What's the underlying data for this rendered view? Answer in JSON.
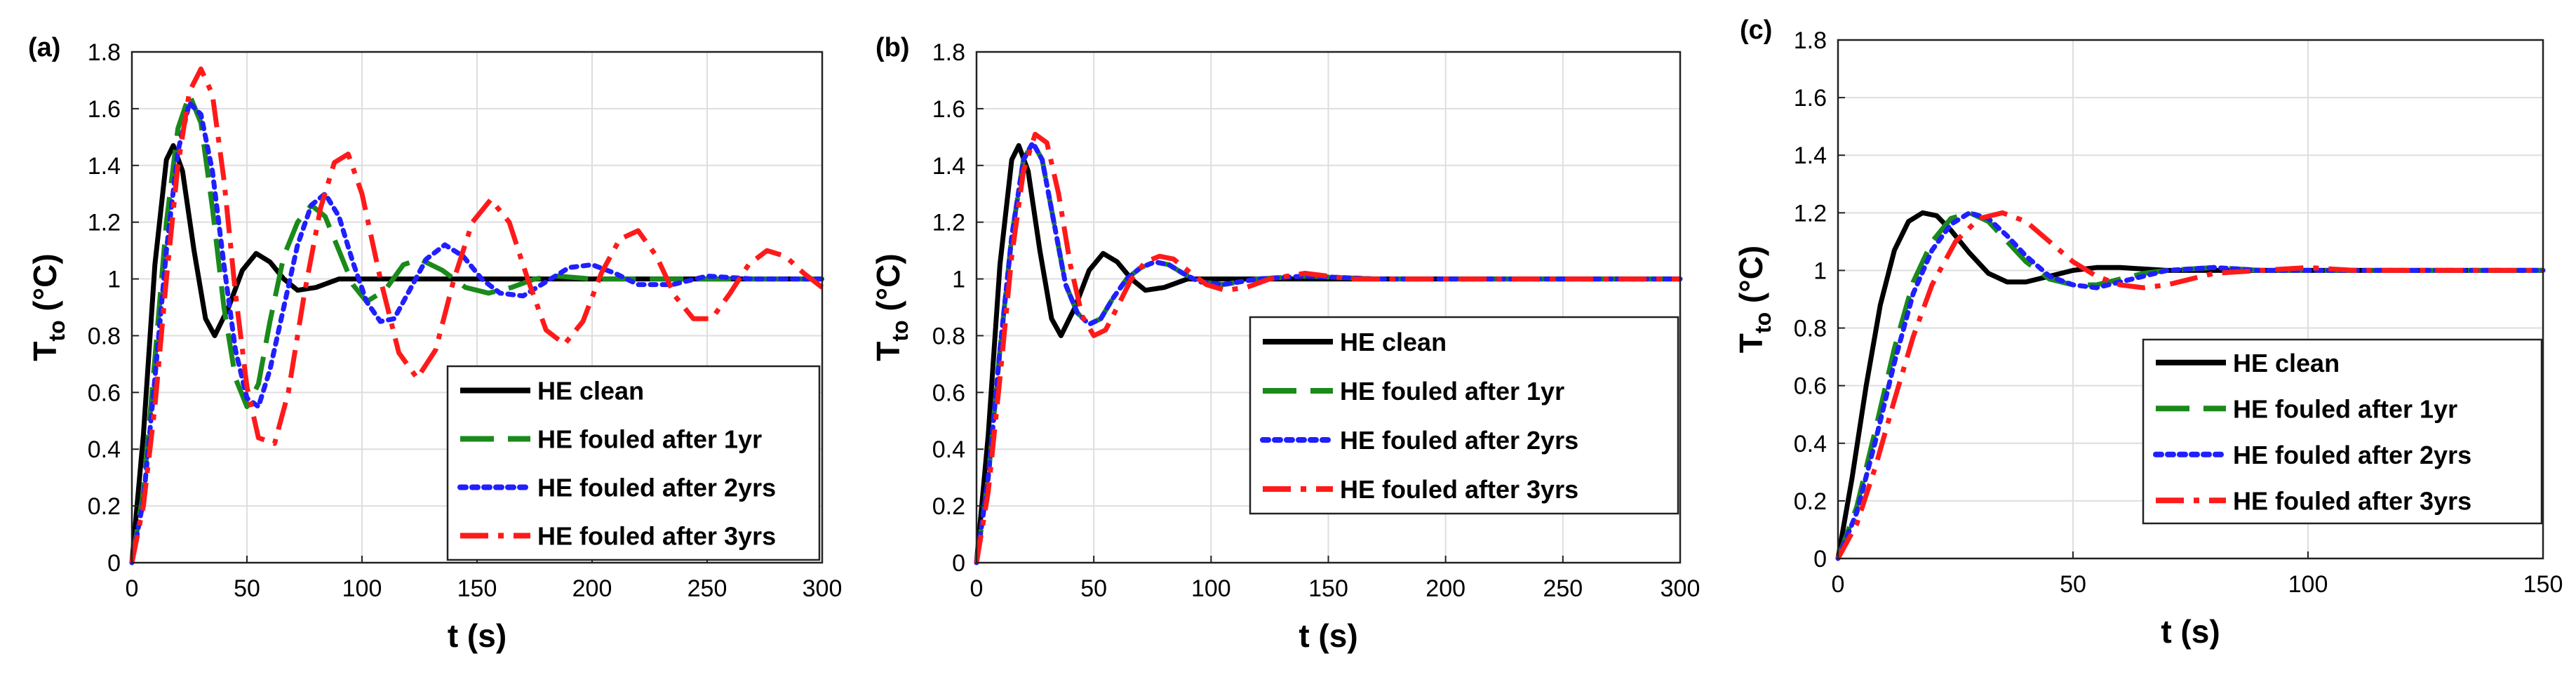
{
  "figure": {
    "panels": [
      {
        "tag": "(a)",
        "xlabel": "t (s)",
        "ylabel_main": "T",
        "ylabel_sub": "to",
        "ylabel_unit": " (°C)"
      },
      {
        "tag": "(b)",
        "xlabel": "t (s)",
        "ylabel_main": "T",
        "ylabel_sub": "to",
        "ylabel_unit": " (°C)"
      },
      {
        "tag": "(c)",
        "xlabel": "t (s)",
        "ylabel_main": "T",
        "ylabel_sub": "to",
        "ylabel_unit": " (°C)"
      }
    ],
    "legend_labels": [
      "HE clean",
      "HE fouled after 1yr",
      "HE fouled after 2yrs",
      "HE fouled after 3yrs"
    ],
    "series_styles": [
      {
        "color": "#000000",
        "dash": ""
      },
      {
        "color": "#1a8a1a",
        "dash": "long-dash"
      },
      {
        "color": "#1f1fff",
        "dash": "dot"
      },
      {
        "color": "#ff1a1a",
        "dash": "dash-dot"
      }
    ]
  },
  "chart_data": [
    {
      "type": "line",
      "tag": "(a)",
      "xlabel": "t (s)",
      "ylabel": "Tto (°C)",
      "xlim": [
        0,
        300
      ],
      "ylim": [
        0,
        1.8
      ],
      "xticks": [
        0,
        50,
        100,
        150,
        200,
        250,
        300
      ],
      "yticks": [
        0,
        0.2,
        0.4,
        0.6,
        0.8,
        1,
        1.2,
        1.4,
        1.6,
        1.8
      ],
      "grid": true,
      "legend_position": "bottom-right",
      "series": [
        {
          "name": "HE clean",
          "x": [
            0,
            5,
            10,
            15,
            18,
            22,
            27,
            32,
            36,
            42,
            48,
            54,
            60,
            66,
            72,
            80,
            90,
            100,
            120,
            150,
            200,
            250,
            300
          ],
          "y": [
            0,
            0.45,
            1.05,
            1.42,
            1.47,
            1.38,
            1.1,
            0.86,
            0.8,
            0.9,
            1.03,
            1.09,
            1.06,
            1.0,
            0.96,
            0.97,
            1.0,
            1.0,
            1.0,
            1.0,
            1.0,
            1.0,
            1.0
          ]
        },
        {
          "name": "HE fouled after 1yr",
          "x": [
            0,
            5,
            10,
            15,
            20,
            25,
            30,
            35,
            40,
            45,
            50,
            55,
            60,
            66,
            72,
            78,
            84,
            90,
            96,
            102,
            110,
            118,
            125,
            135,
            145,
            155,
            165,
            175,
            185,
            200,
            230,
            260,
            300
          ],
          "y": [
            0,
            0.25,
            0.72,
            1.2,
            1.53,
            1.65,
            1.55,
            1.25,
            0.9,
            0.65,
            0.55,
            0.63,
            0.85,
            1.08,
            1.2,
            1.26,
            1.22,
            1.1,
            0.98,
            0.92,
            0.96,
            1.05,
            1.07,
            1.03,
            0.97,
            0.95,
            0.97,
            1.0,
            1.01,
            1.0,
            1.0,
            1.0,
            1.0
          ]
        },
        {
          "name": "HE fouled after 2yrs",
          "x": [
            0,
            5,
            10,
            15,
            20,
            25,
            30,
            35,
            40,
            45,
            50,
            55,
            60,
            66,
            72,
            78,
            84,
            90,
            96,
            102,
            108,
            114,
            120,
            128,
            136,
            144,
            152,
            160,
            170,
            180,
            190,
            200,
            210,
            220,
            235,
            250,
            270,
            300
          ],
          "y": [
            0,
            0.22,
            0.65,
            1.1,
            1.45,
            1.62,
            1.58,
            1.38,
            1.05,
            0.75,
            0.58,
            0.55,
            0.68,
            0.9,
            1.12,
            1.26,
            1.3,
            1.22,
            1.06,
            0.92,
            0.85,
            0.86,
            0.95,
            1.07,
            1.12,
            1.08,
            1.0,
            0.95,
            0.94,
            0.99,
            1.04,
            1.05,
            1.02,
            0.98,
            0.98,
            1.01,
            1.0,
            1.0
          ]
        },
        {
          "name": "HE fouled after 3yrs",
          "x": [
            0,
            5,
            10,
            15,
            20,
            25,
            30,
            35,
            40,
            45,
            50,
            55,
            62,
            68,
            75,
            82,
            88,
            94,
            100,
            108,
            116,
            124,
            132,
            140,
            148,
            156,
            164,
            172,
            180,
            188,
            196,
            204,
            212,
            220,
            228,
            236,
            244,
            252,
            260,
            268,
            276,
            284,
            292,
            300
          ],
          "y": [
            0,
            0.2,
            0.55,
            1.0,
            1.4,
            1.66,
            1.74,
            1.65,
            1.35,
            0.95,
            0.62,
            0.44,
            0.42,
            0.6,
            0.95,
            1.25,
            1.41,
            1.44,
            1.3,
            1.0,
            0.74,
            0.65,
            0.75,
            1.0,
            1.2,
            1.28,
            1.2,
            1.0,
            0.82,
            0.77,
            0.85,
            1.02,
            1.14,
            1.17,
            1.08,
            0.94,
            0.86,
            0.86,
            0.95,
            1.05,
            1.1,
            1.08,
            1.02,
            0.97
          ]
        }
      ]
    },
    {
      "type": "line",
      "tag": "(b)",
      "xlabel": "t (s)",
      "ylabel": "Tto (°C)",
      "xlim": [
        0,
        300
      ],
      "ylim": [
        0,
        1.8
      ],
      "xticks": [
        0,
        50,
        100,
        150,
        200,
        250,
        300
      ],
      "yticks": [
        0,
        0.2,
        0.4,
        0.6,
        0.8,
        1,
        1.2,
        1.4,
        1.6,
        1.8
      ],
      "grid": true,
      "legend_position": "bottom-right",
      "series": [
        {
          "name": "HE clean",
          "x": [
            0,
            5,
            10,
            15,
            18,
            22,
            27,
            32,
            36,
            42,
            48,
            54,
            60,
            66,
            72,
            80,
            90,
            100,
            120,
            150,
            200,
            250,
            300
          ],
          "y": [
            0,
            0.45,
            1.05,
            1.42,
            1.47,
            1.38,
            1.1,
            0.86,
            0.8,
            0.9,
            1.03,
            1.09,
            1.06,
            1.0,
            0.96,
            0.97,
            1.0,
            1.0,
            1.0,
            1.0,
            1.0,
            1.0,
            1.0
          ]
        },
        {
          "name": "HE fouled after 1yr",
          "x": [
            0,
            5,
            10,
            15,
            20,
            24,
            28,
            33,
            38,
            43,
            48,
            53,
            58,
            64,
            70,
            76,
            82,
            88,
            95,
            105,
            120,
            140,
            170,
            200,
            250,
            300
          ],
          "y": [
            0,
            0.3,
            0.75,
            1.15,
            1.42,
            1.48,
            1.42,
            1.2,
            0.98,
            0.88,
            0.84,
            0.86,
            0.93,
            1.0,
            1.04,
            1.06,
            1.05,
            1.02,
            0.99,
            0.98,
            1.0,
            1.01,
            1.0,
            1.0,
            1.0,
            1.0
          ]
        },
        {
          "name": "HE fouled after 2yrs",
          "x": [
            0,
            5,
            10,
            15,
            20,
            24,
            28,
            33,
            38,
            43,
            48,
            53,
            58,
            64,
            70,
            76,
            82,
            88,
            95,
            105,
            120,
            140,
            170,
            200,
            250,
            300
          ],
          "y": [
            0,
            0.3,
            0.75,
            1.15,
            1.42,
            1.48,
            1.42,
            1.2,
            0.98,
            0.88,
            0.84,
            0.86,
            0.93,
            1.0,
            1.04,
            1.06,
            1.05,
            1.02,
            0.99,
            0.98,
            1.0,
            1.01,
            1.0,
            1.0,
            1.0,
            1.0
          ]
        },
        {
          "name": "HE fouled after 3yrs",
          "x": [
            0,
            5,
            10,
            15,
            20,
            25,
            30,
            35,
            40,
            45,
            50,
            55,
            60,
            66,
            72,
            78,
            84,
            90,
            98,
            106,
            115,
            125,
            140,
            160,
            200,
            250,
            300
          ],
          "y": [
            0,
            0.25,
            0.65,
            1.08,
            1.38,
            1.51,
            1.48,
            1.3,
            1.05,
            0.87,
            0.8,
            0.82,
            0.9,
            1.0,
            1.06,
            1.08,
            1.07,
            1.03,
            0.98,
            0.96,
            0.97,
            1.0,
            1.02,
            1.0,
            1.0,
            1.0,
            1.0
          ]
        }
      ]
    },
    {
      "type": "line",
      "tag": "(c)",
      "xlabel": "t (s)",
      "ylabel": "Tto (°C)",
      "xlim": [
        0,
        150
      ],
      "ylim": [
        0,
        1.8
      ],
      "xticks": [
        0,
        50,
        100,
        150
      ],
      "yticks": [
        0,
        0.2,
        0.4,
        0.6,
        0.8,
        1,
        1.2,
        1.4,
        1.6,
        1.8
      ],
      "grid": true,
      "legend_position": "bottom-right",
      "series": [
        {
          "name": "HE clean",
          "x": [
            0,
            3,
            6,
            9,
            12,
            15,
            18,
            21,
            24,
            28,
            32,
            36,
            40,
            45,
            50,
            55,
            60,
            70,
            80,
            100,
            120,
            150
          ],
          "y": [
            0,
            0.28,
            0.6,
            0.88,
            1.07,
            1.17,
            1.2,
            1.19,
            1.14,
            1.06,
            0.99,
            0.96,
            0.96,
            0.98,
            1.0,
            1.01,
            1.01,
            1.0,
            1.0,
            1.0,
            1.0,
            1.0
          ]
        },
        {
          "name": "HE fouled after 1yr",
          "x": [
            0,
            4,
            8,
            12,
            16,
            20,
            24,
            28,
            32,
            36,
            40,
            45,
            50,
            55,
            60,
            65,
            70,
            80,
            90,
            100,
            120,
            150
          ],
          "y": [
            0,
            0.18,
            0.45,
            0.73,
            0.96,
            1.1,
            1.18,
            1.2,
            1.17,
            1.1,
            1.03,
            0.97,
            0.95,
            0.95,
            0.97,
            0.99,
            1.0,
            1.01,
            1.0,
            1.0,
            1.0,
            1.0
          ]
        },
        {
          "name": "HE fouled after 2yrs",
          "x": [
            0,
            4,
            8,
            12,
            16,
            20,
            24,
            28,
            32,
            36,
            40,
            45,
            50,
            55,
            60,
            65,
            70,
            80,
            90,
            100,
            120,
            150
          ],
          "y": [
            0,
            0.16,
            0.41,
            0.68,
            0.92,
            1.07,
            1.16,
            1.2,
            1.18,
            1.12,
            1.05,
            0.98,
            0.95,
            0.94,
            0.96,
            0.98,
            1.0,
            1.01,
            1.0,
            1.0,
            1.0,
            1.0
          ]
        },
        {
          "name": "HE fouled after 3yrs",
          "x": [
            0,
            4,
            8,
            12,
            16,
            20,
            25,
            30,
            35,
            40,
            45,
            50,
            55,
            60,
            65,
            70,
            75,
            80,
            90,
            100,
            110,
            120,
            150
          ],
          "y": [
            0,
            0.12,
            0.32,
            0.55,
            0.77,
            0.95,
            1.1,
            1.18,
            1.2,
            1.17,
            1.1,
            1.03,
            0.98,
            0.95,
            0.94,
            0.95,
            0.97,
            0.99,
            1.0,
            1.01,
            1.0,
            1.0,
            1.0
          ]
        }
      ]
    }
  ]
}
